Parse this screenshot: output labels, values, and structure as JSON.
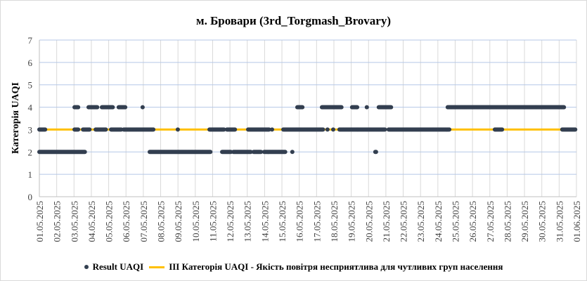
{
  "chart_data": {
    "type": "scatter",
    "title": "м. Бровари (3rd_Torgmash_Brovary)",
    "ylabel": "Категорія UAQI",
    "xlabel": "",
    "ylim": [
      0,
      7
    ],
    "yticks": [
      "0",
      "1",
      "2",
      "3",
      "4",
      "5",
      "6",
      "7"
    ],
    "xticks": [
      "01.05.2025",
      "02.05.2025",
      "03.05.2025",
      "04.05.2025",
      "05.05.2025",
      "06.05.2025",
      "07.05.2025",
      "08.05.2025",
      "09.05.2025",
      "10.05.2025",
      "11.05.2025",
      "12.05.2025",
      "13.05.2025",
      "14.05.2025",
      "15.05.2025",
      "16.05.2025",
      "17.05.2025",
      "18.05.2025",
      "19.05.2025",
      "20.05.2025",
      "21.05.2025",
      "22.05.2025",
      "23.05.2025",
      "24.05.2025",
      "25.05.2025",
      "26.05.2025",
      "27.05.2025",
      "28.05.2025",
      "29.05.2025",
      "30.05.2025",
      "31.05.2025",
      "01.06.2025"
    ],
    "x_units": "days since 01.05.2025",
    "grid": true,
    "legend_position": "bottom",
    "series": [
      {
        "name": "Result UAQI",
        "color": "#333F50",
        "type": "scatter",
        "runs_start_end_value": [
          [
            0,
            2.64,
            2
          ],
          [
            6.37,
            9.9,
            2
          ],
          [
            10.55,
            11.07,
            2
          ],
          [
            11.2,
            12.2,
            2
          ],
          [
            12.37,
            12.82,
            2
          ],
          [
            12.98,
            14.2,
            2
          ],
          [
            14.6,
            14.6,
            2
          ],
          [
            19.39,
            19.45,
            2
          ],
          [
            0,
            0.37,
            3
          ],
          [
            2.03,
            2.27,
            3
          ],
          [
            2.52,
            2.92,
            3
          ],
          [
            3.25,
            3.85,
            3
          ],
          [
            4.14,
            4.75,
            3
          ],
          [
            4.87,
            6.61,
            3
          ],
          [
            7.99,
            7.99,
            3
          ],
          [
            9.82,
            10.67,
            3
          ],
          [
            10.83,
            11.32,
            3
          ],
          [
            12.05,
            13.27,
            3
          ],
          [
            13.43,
            13.43,
            3
          ],
          [
            14.08,
            16.39,
            3
          ],
          [
            16.63,
            16.63,
            3
          ],
          [
            16.96,
            16.96,
            3
          ],
          [
            17.32,
            19.96,
            3
          ],
          [
            20.16,
            23.69,
            3
          ],
          [
            26.29,
            26.73,
            3
          ],
          [
            30.18,
            30.95,
            3
          ],
          [
            2.03,
            2.27,
            4
          ],
          [
            2.84,
            3.37,
            4
          ],
          [
            3.61,
            4.26,
            4
          ],
          [
            4.58,
            4.99,
            4
          ],
          [
            5.96,
            5.96,
            4
          ],
          [
            14.89,
            15.21,
            4
          ],
          [
            16.31,
            17.44,
            4
          ],
          [
            18.05,
            18.38,
            4
          ],
          [
            18.9,
            18.9,
            4
          ],
          [
            19.59,
            20.32,
            4
          ],
          [
            23.57,
            30.3,
            4
          ]
        ]
      },
      {
        "name": "ІІІ Категорія UAQI - Якість повітря несприятлива для чутливих груп населення",
        "color": "#FFC000",
        "type": "line",
        "y": 3
      }
    ]
  }
}
